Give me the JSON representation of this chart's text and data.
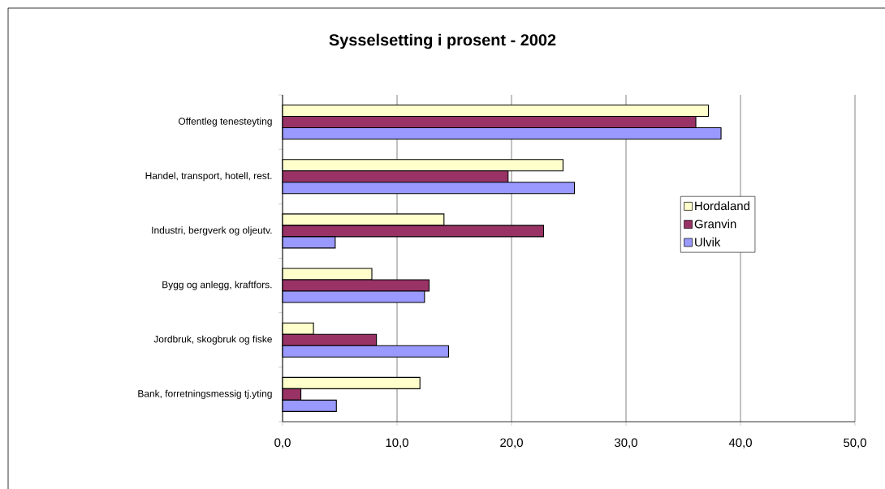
{
  "chart_data": {
    "type": "bar",
    "orientation": "horizontal",
    "title": "Sysselsetting i prosent - 2002",
    "categories": [
      "Offentleg tenesteyting",
      "Handel, transport, hotell, rest.",
      "Industri, bergverk og oljeutv.",
      "Bygg og anlegg, kraftfors.",
      "Jordbruk, skogbruk og fiske",
      "Bank, forretningsmessig tj.yting"
    ],
    "series": [
      {
        "name": "Hordaland",
        "color": "#ffffcc",
        "values": [
          37.2,
          24.5,
          14.1,
          7.8,
          2.7,
          12.0
        ]
      },
      {
        "name": "Granvin",
        "color": "#993366",
        "values": [
          36.1,
          19.7,
          22.8,
          12.8,
          8.2,
          1.6
        ]
      },
      {
        "name": "Ulvik",
        "color": "#9999ff",
        "values": [
          38.3,
          25.5,
          4.6,
          12.4,
          14.5,
          4.7
        ]
      }
    ],
    "xlim": [
      0,
      50
    ],
    "xticks": [
      {
        "value": 0,
        "label": "0,0"
      },
      {
        "value": 10,
        "label": "10,0"
      },
      {
        "value": 20,
        "label": "20,0"
      },
      {
        "value": 30,
        "label": "30,0"
      },
      {
        "value": 40,
        "label": "40,0"
      },
      {
        "value": 50,
        "label": "50,0"
      }
    ],
    "grid": "x",
    "legend": "right"
  }
}
